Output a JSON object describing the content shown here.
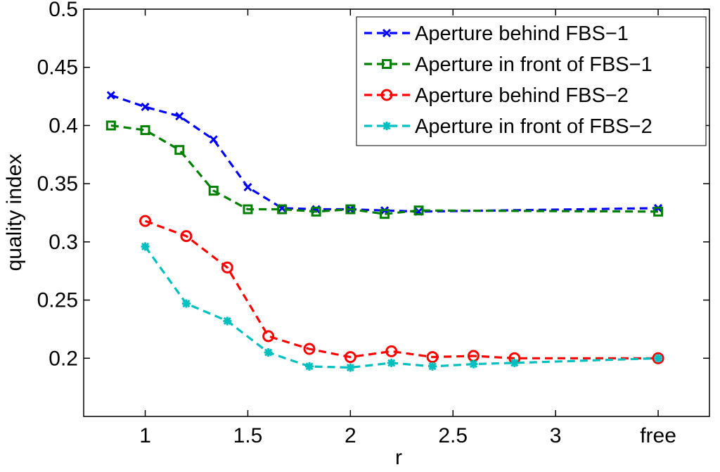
{
  "chart_data": {
    "type": "line",
    "title": "",
    "xlabel": "r",
    "ylabel": "quality index",
    "xlim": [
      0.7,
      3.75
    ],
    "ylim": [
      0.15,
      0.5
    ],
    "x_ticks": [
      {
        "value": 1,
        "label": "1"
      },
      {
        "value": 1.5,
        "label": "1.5"
      },
      {
        "value": 2,
        "label": "2"
      },
      {
        "value": 2.5,
        "label": "2.5"
      },
      {
        "value": 3,
        "label": "3"
      },
      {
        "value": 3.5,
        "label": "free"
      }
    ],
    "y_ticks": [
      {
        "value": 0.2,
        "label": "0.2"
      },
      {
        "value": 0.25,
        "label": "0.25"
      },
      {
        "value": 0.3,
        "label": "0.3"
      },
      {
        "value": 0.35,
        "label": "0.35"
      },
      {
        "value": 0.4,
        "label": "0.4"
      },
      {
        "value": 0.45,
        "label": "0.45"
      },
      {
        "value": 0.5,
        "label": "0.5"
      }
    ],
    "grid": false,
    "legend_position": "top-right",
    "series": [
      {
        "name": "Aperture behind FBS−1",
        "color": "#0000ff",
        "marker": "x",
        "x": [
          0.833,
          1.0,
          1.167,
          1.333,
          1.5,
          1.667,
          1.833,
          2.0,
          2.167,
          2.333,
          3.5
        ],
        "y": [
          0.426,
          0.416,
          0.408,
          0.388,
          0.347,
          0.329,
          0.328,
          0.328,
          0.327,
          0.326,
          0.329
        ]
      },
      {
        "name": "Aperture in front of FBS−1",
        "color": "#008000",
        "marker": "square",
        "x": [
          0.833,
          1.0,
          1.167,
          1.333,
          1.5,
          1.667,
          1.833,
          2.0,
          2.167,
          2.333,
          3.5
        ],
        "y": [
          0.4,
          0.396,
          0.379,
          0.344,
          0.328,
          0.328,
          0.326,
          0.328,
          0.324,
          0.327,
          0.326
        ]
      },
      {
        "name": "Aperture behind FBS−2",
        "color": "#ff0000",
        "marker": "circle",
        "x": [
          1.0,
          1.2,
          1.4,
          1.6,
          1.8,
          2.0,
          2.2,
          2.4,
          2.6,
          2.8,
          3.5
        ],
        "y": [
          0.318,
          0.305,
          0.278,
          0.219,
          0.208,
          0.201,
          0.206,
          0.201,
          0.202,
          0.2,
          0.2
        ]
      },
      {
        "name": "Aperture in front of FBS−2",
        "color": "#00bfbf",
        "marker": "star",
        "x": [
          1.0,
          1.2,
          1.4,
          1.6,
          1.8,
          2.0,
          2.2,
          2.4,
          2.6,
          2.8,
          3.5
        ],
        "y": [
          0.296,
          0.247,
          0.232,
          0.205,
          0.193,
          0.192,
          0.196,
          0.193,
          0.195,
          0.196,
          0.2
        ]
      }
    ]
  }
}
